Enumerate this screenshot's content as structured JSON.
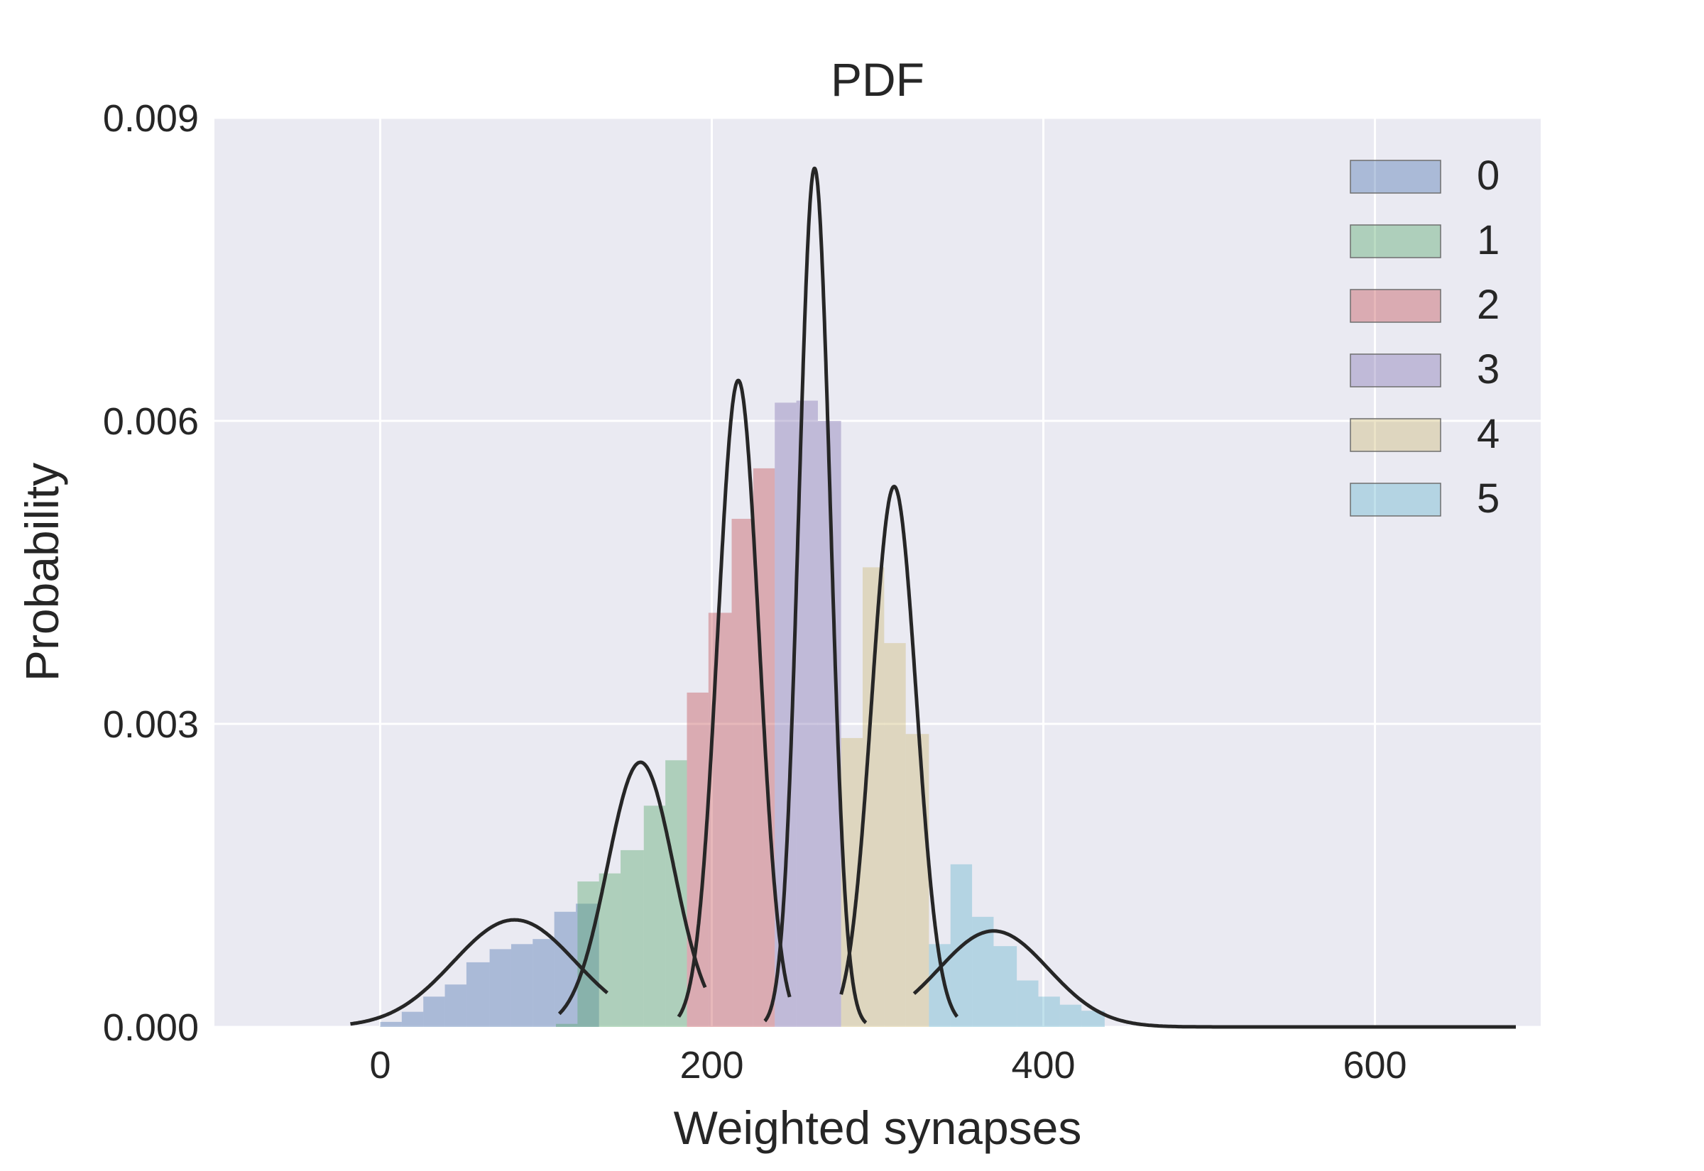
{
  "chart_data": {
    "type": "bar",
    "title": "PDF",
    "xlabel": "Weighted synapses",
    "ylabel": "Probability",
    "xlim": [
      -100,
      700
    ],
    "ylim": [
      0,
      0.009
    ],
    "xticks": [
      0,
      200,
      400,
      600
    ],
    "xtick_labels": [
      "0",
      "200",
      "400",
      "600"
    ],
    "yticks": [
      0,
      0.003,
      0.006,
      0.009
    ],
    "ytick_labels": [
      "0.000",
      "0.003",
      "0.006",
      "0.009"
    ],
    "grid": true,
    "legend_position": "top-right",
    "colors": {
      "background": "#eaeaf2",
      "grid": "#ffffff",
      "curve": "#262626"
    },
    "series": [
      {
        "name": "0",
        "color": "#4c72b0",
        "bins": [
          [
            0,
            13,
            5e-05
          ],
          [
            13,
            26,
            0.00015
          ],
          [
            26,
            39,
            0.0003
          ],
          [
            39,
            52,
            0.00042
          ],
          [
            52,
            66,
            0.00064
          ],
          [
            66,
            79,
            0.00077
          ],
          [
            79,
            92,
            0.00082
          ],
          [
            92,
            105,
            0.00087
          ],
          [
            105,
            118,
            0.00114
          ],
          [
            118,
            132,
            0.00122
          ]
        ],
        "fit": {
          "mean": 81,
          "std": 37,
          "peak": 0.00106,
          "range": [
            -18,
            137
          ]
        }
      },
      {
        "name": "1",
        "color": "#55a868",
        "bins": [
          [
            106,
            119,
            3e-05
          ],
          [
            119,
            132,
            0.00144
          ],
          [
            132,
            145,
            0.00152
          ],
          [
            145,
            159,
            0.00175
          ],
          [
            159,
            172,
            0.00219
          ],
          [
            172,
            185,
            0.00264
          ]
        ],
        "fit": {
          "mean": 157,
          "std": 20,
          "peak": 0.00262,
          "range": [
            108,
            196
          ]
        }
      },
      {
        "name": "2",
        "color": "#c44e52",
        "bins": [
          [
            185,
            198,
            0.00331
          ],
          [
            198,
            212,
            0.0041
          ],
          [
            212,
            225,
            0.00503
          ],
          [
            225,
            238,
            0.00553
          ]
        ],
        "fit": {
          "mean": 216,
          "std": 12.5,
          "peak": 0.0064,
          "range": [
            180,
            247
          ]
        }
      },
      {
        "name": "3",
        "color": "#8172b2",
        "bins": [
          [
            238,
            251,
            0.00618
          ],
          [
            251,
            264,
            0.0062
          ],
          [
            264,
            278,
            0.006
          ]
        ],
        "fit": {
          "mean": 262,
          "std": 9.5,
          "peak": 0.0085,
          "range": [
            232,
            293
          ]
        }
      },
      {
        "name": "4",
        "color": "#ccb974",
        "bins": [
          [
            278,
            291,
            0.00286
          ],
          [
            291,
            304,
            0.00455
          ],
          [
            304,
            317,
            0.0038
          ],
          [
            317,
            331,
            0.0029
          ]
        ],
        "fit": {
          "mean": 310,
          "std": 13.5,
          "peak": 0.00535,
          "range": [
            278,
            348
          ]
        }
      },
      {
        "name": "5",
        "color": "#64b5cd",
        "bins": [
          [
            331,
            344,
            0.00082
          ],
          [
            344,
            357,
            0.00161
          ],
          [
            357,
            370,
            0.00109
          ],
          [
            370,
            384,
            0.0008
          ],
          [
            384,
            397,
            0.00046
          ],
          [
            397,
            410,
            0.0003
          ],
          [
            410,
            423,
            0.00022
          ],
          [
            423,
            437,
            0.00016
          ]
        ],
        "fit": {
          "mean": 370,
          "std": 33,
          "peak": 0.00095,
          "range": [
            322,
            685
          ]
        }
      }
    ]
  }
}
